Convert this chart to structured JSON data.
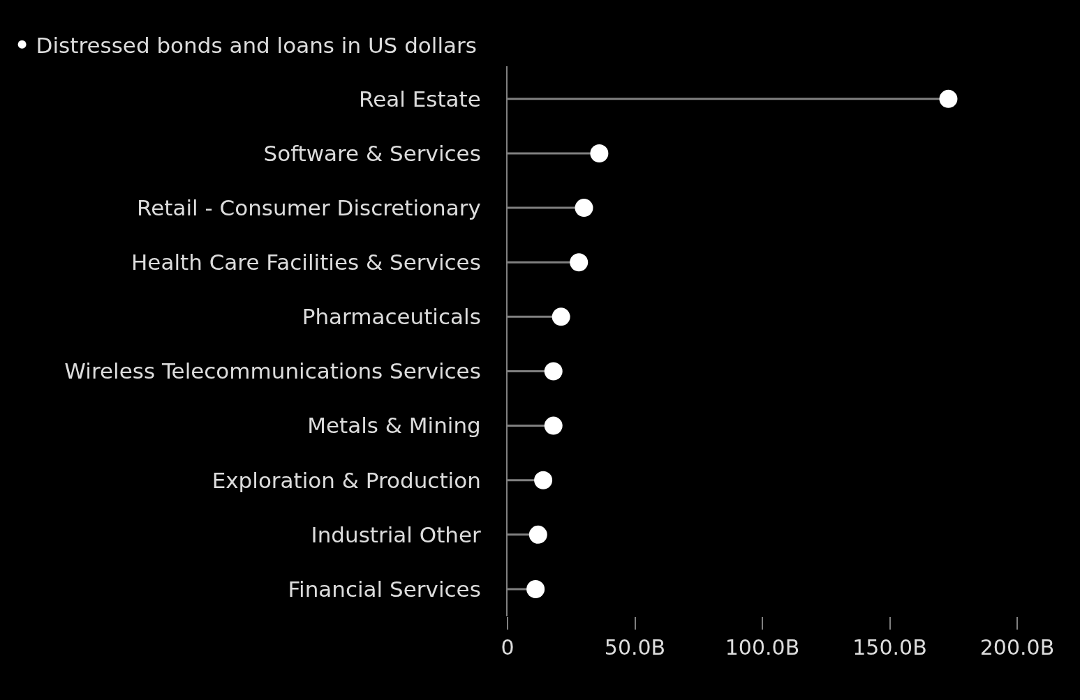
{
  "chart_data": {
    "type": "lollipop",
    "orientation": "horizontal",
    "categories": [
      "Real Estate",
      "Software & Services",
      "Retail - Consumer Discretionary",
      "Health Care Facilities & Services",
      "Pharmaceuticals",
      "Wireless Telecommunications Services",
      "Metals & Mining",
      "Exploration & Production",
      "Industrial Other",
      "Financial Services"
    ],
    "series": [
      {
        "name": "Distressed bonds and loans in US dollars",
        "color": "#ffffff",
        "values": [
          173,
          36,
          30,
          28,
          21,
          18,
          18,
          14,
          12,
          11
        ]
      }
    ],
    "xlim": [
      0,
      200
    ],
    "xticks": [
      0,
      {
        "value": 50,
        "label": "50.0B"
      },
      {
        "value": 100,
        "label": "100.0B"
      },
      {
        "value": 150,
        "label": "150.0B"
      },
      {
        "value": 200,
        "label": "200.0B"
      }
    ],
    "grid": false,
    "legend": "top left",
    "marker": "circle"
  }
}
